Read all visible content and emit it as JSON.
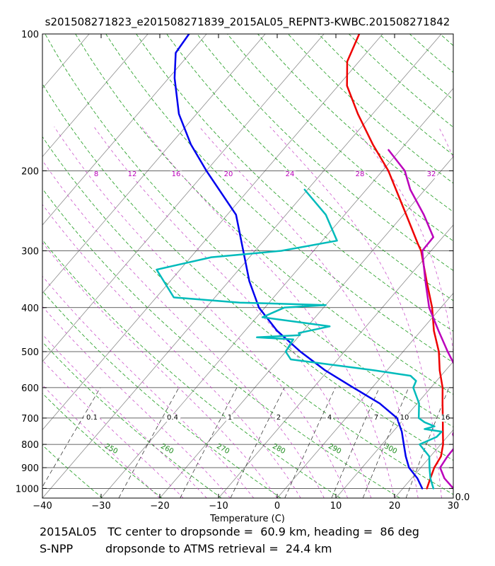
{
  "chart_data": {
    "type": "line",
    "subtype": "skew-T log-P diagram",
    "title": "s201508271823_e201508271839_2015AL05_REPNT3-KWBC.201508271842",
    "xlabel": "Temperature (C)",
    "ylabel": "",
    "xlim": [
      -40,
      30
    ],
    "ylim": [
      1050,
      100
    ],
    "x_ticks": [
      "−40",
      "−30",
      "−20",
      "−10",
      "0",
      "10",
      "20",
      "30"
    ],
    "pressure_ticks": [
      "100",
      "200",
      "300",
      "400",
      "500",
      "600",
      "700",
      "800",
      "900",
      "1000"
    ],
    "corner_label": "0.0",
    "isotherm_spacing_c": 10,
    "dry_adiabats_k": [
      250,
      260,
      270,
      280,
      290,
      300
    ],
    "dry_adiabat_labels": [
      "250",
      "260",
      "270",
      "280",
      "290",
      "300"
    ],
    "moist_adiabat_labels": [
      "8",
      "12",
      "16",
      "20",
      "24",
      "28",
      "32"
    ],
    "mixing_ratio_labels": [
      "0.1",
      "0.4",
      "1",
      "2",
      "4",
      "7",
      "10",
      "16"
    ],
    "series": [
      {
        "name": "temperature (red)",
        "color": "#ee0000",
        "points": [
          {
            "p": 1000,
            "t": 24.1
          },
          {
            "p": 950,
            "t": 23.2
          },
          {
            "p": 900,
            "t": 22.3
          },
          {
            "p": 850,
            "t": 21.8
          },
          {
            "p": 800,
            "t": 20.4
          },
          {
            "p": 750,
            "t": 18.5
          },
          {
            "p": 700,
            "t": 16.5
          },
          {
            "p": 650,
            "t": 14.3
          },
          {
            "p": 600,
            "t": 12.0
          },
          {
            "p": 550,
            "t": 9.0
          },
          {
            "p": 500,
            "t": 6.1
          },
          {
            "p": 450,
            "t": 2.2
          },
          {
            "p": 400,
            "t": -1.5
          },
          {
            "p": 350,
            "t": -6.3
          },
          {
            "p": 300,
            "t": -11.7
          },
          {
            "p": 290,
            "t": -13.2
          },
          {
            "p": 250,
            "t": -19.5
          },
          {
            "p": 200,
            "t": -29.0
          },
          {
            "p": 175,
            "t": -35.5
          },
          {
            "p": 150,
            "t": -42.5
          },
          {
            "p": 130,
            "t": -48.5
          },
          {
            "p": 115,
            "t": -52.0
          },
          {
            "p": 100,
            "t": -54.0
          }
        ]
      },
      {
        "name": "dewpoint (blue)",
        "color": "#0000ee",
        "points": [
          {
            "p": 1000,
            "t": 23.3
          },
          {
            "p": 950,
            "t": 21.0
          },
          {
            "p": 900,
            "t": 18.0
          },
          {
            "p": 850,
            "t": 15.8
          },
          {
            "p": 800,
            "t": 13.7
          },
          {
            "p": 750,
            "t": 11.5
          },
          {
            "p": 700,
            "t": 8.7
          },
          {
            "p": 650,
            "t": 3.6
          },
          {
            "p": 600,
            "t": -3.2
          },
          {
            "p": 550,
            "t": -10.5
          },
          {
            "p": 500,
            "t": -17.5
          },
          {
            "p": 450,
            "t": -24.5
          },
          {
            "p": 400,
            "t": -31.0
          },
          {
            "p": 350,
            "t": -36.5
          },
          {
            "p": 300,
            "t": -42.0
          },
          {
            "p": 250,
            "t": -48.5
          },
          {
            "p": 200,
            "t": -60.0
          },
          {
            "p": 175,
            "t": -66.5
          },
          {
            "p": 150,
            "t": -73.0
          },
          {
            "p": 125,
            "t": -79.0
          },
          {
            "p": 110,
            "t": -82.5
          },
          {
            "p": 100,
            "t": -83.0
          }
        ]
      },
      {
        "name": "retrieval temperature (magenta)",
        "color": "#bb00bb",
        "points": [
          {
            "p": 1000,
            "t": 28.6
          },
          {
            "p": 950,
            "t": 25.6
          },
          {
            "p": 900,
            "t": 23.3
          },
          {
            "p": 850,
            "t": 22.9
          },
          {
            "p": 800,
            "t": 22.8
          },
          {
            "p": 760,
            "t": 20.6
          },
          {
            "p": 730,
            "t": 20.0
          },
          {
            "p": 700,
            "t": 19.8
          },
          {
            "p": 660,
            "t": 20.6
          },
          {
            "p": 600,
            "t": 16.6
          },
          {
            "p": 550,
            "t": 12.0
          },
          {
            "p": 500,
            "t": 7.6
          },
          {
            "p": 450,
            "t": 3.0
          },
          {
            "p": 400,
            "t": -2.0
          },
          {
            "p": 350,
            "t": -6.5
          },
          {
            "p": 300,
            "t": -11.5
          },
          {
            "p": 280,
            "t": -11.6
          },
          {
            "p": 250,
            "t": -16.5
          },
          {
            "p": 220,
            "t": -22.5
          },
          {
            "p": 200,
            "t": -26.2
          },
          {
            "p": 180,
            "t": -32.0
          }
        ]
      },
      {
        "name": "retrieval dewpoint (cyan)",
        "color": "#00bbbb",
        "points": [
          {
            "p": 1000,
            "t": 25.2
          },
          {
            "p": 950,
            "t": 23.2
          },
          {
            "p": 900,
            "t": 21.5
          },
          {
            "p": 850,
            "t": 19.8
          },
          {
            "p": 800,
            "t": 16.4
          },
          {
            "p": 770,
            "t": 18.2
          },
          {
            "p": 750,
            "t": 18.3
          },
          {
            "p": 740,
            "t": 15.0
          },
          {
            "p": 730,
            "t": 16.3
          },
          {
            "p": 715,
            "t": 14.0
          },
          {
            "p": 700,
            "t": 12.4
          },
          {
            "p": 650,
            "t": 10.3
          },
          {
            "p": 600,
            "t": 7.0
          },
          {
            "p": 580,
            "t": 6.5
          },
          {
            "p": 565,
            "t": 4.8
          },
          {
            "p": 550,
            "t": -2.0
          },
          {
            "p": 520,
            "t": -18.0
          },
          {
            "p": 500,
            "t": -20.0
          },
          {
            "p": 470,
            "t": -20.5
          },
          {
            "p": 465,
            "t": -27.0
          },
          {
            "p": 460,
            "t": -20.0
          },
          {
            "p": 455,
            "t": -20.5
          },
          {
            "p": 440,
            "t": -16.2
          },
          {
            "p": 420,
            "t": -29.0
          },
          {
            "p": 400,
            "t": -26.7
          },
          {
            "p": 395,
            "t": -20.0
          },
          {
            "p": 390,
            "t": -35.0
          },
          {
            "p": 380,
            "t": -47.0
          },
          {
            "p": 330,
            "t": -54.0
          },
          {
            "p": 310,
            "t": -46.5
          },
          {
            "p": 300,
            "t": -35.5
          },
          {
            "p": 285,
            "t": -27.5
          },
          {
            "p": 250,
            "t": -33.2
          },
          {
            "p": 220,
            "t": -40.5
          }
        ]
      }
    ]
  },
  "footer": {
    "line1": "2015AL05   TC center to dropsonde =  60.9 km, heading =  86 deg",
    "line2": "S-NPP         dropsonde to ATMS retrieval =  24.4 km"
  }
}
